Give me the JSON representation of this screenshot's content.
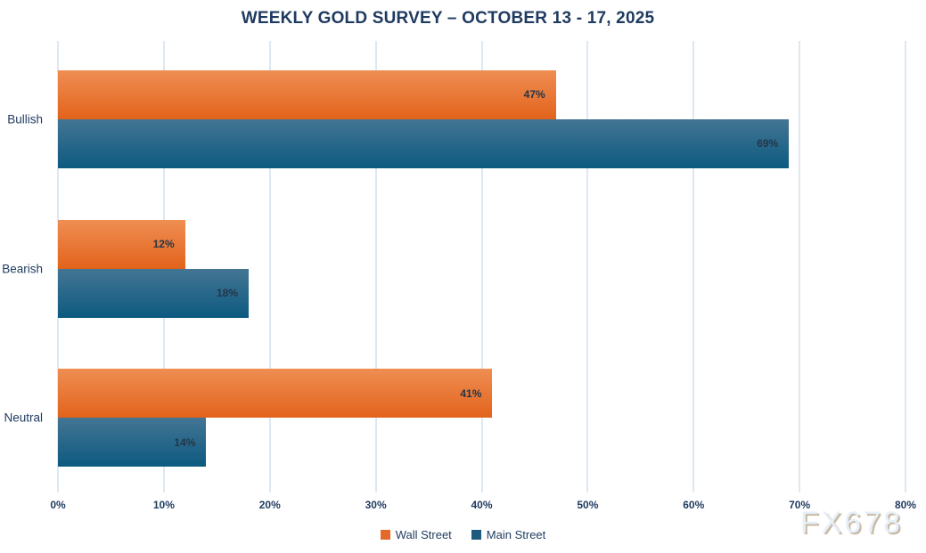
{
  "chart_data": {
    "type": "bar",
    "orientation": "horizontal",
    "title": "WEEKLY GOLD SURVEY – OCTOBER 13 - 17, 2025",
    "categories": [
      "Bullish",
      "Bearish",
      "Neutral"
    ],
    "series": [
      {
        "name": "Wall Street",
        "values": [
          47,
          12,
          41
        ],
        "color_top": "#ef8e53",
        "color_bottom": "#e2631b",
        "legend_color": "#e56a29"
      },
      {
        "name": "Main Street",
        "values": [
          69,
          18,
          14
        ],
        "color_top": "#447593",
        "color_bottom": "#0d5a80",
        "legend_color": "#1d5a7e"
      }
    ],
    "value_suffix": "%",
    "xlabel": "",
    "ylabel": "",
    "xlim": [
      0,
      80
    ],
    "tick_step": 10,
    "tick_labels": [
      "0%",
      "10%",
      "20%",
      "30%",
      "40%",
      "50%",
      "60%",
      "70%",
      "80%"
    ],
    "grid": true,
    "gridline_color": "#dce8f4",
    "legend_position": "bottom-center",
    "data_label_color": "#243647"
  },
  "watermark": {
    "text": "FX678"
  }
}
